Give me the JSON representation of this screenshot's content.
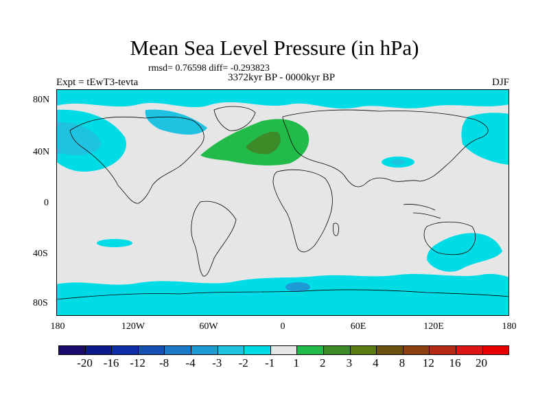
{
  "title": "Mean Sea Level Pressure (in hPa)",
  "stats": "rmsd= 0.76598 diff= -0.293823",
  "subtitle": "3372kyr BP - 0000kyr BP",
  "expt": "Expt = tEwT3-tevta",
  "season": "DJF",
  "lat_labels": [
    "80N",
    "40N",
    "0",
    "40S",
    "80S"
  ],
  "lon_labels": [
    "180",
    "120W",
    "60W",
    "0",
    "60E",
    "120E",
    "180"
  ],
  "colorbar_labels": [
    "-20",
    "-16",
    "-12",
    "-8",
    "-4",
    "-3",
    "-2",
    "-1",
    "1",
    "2",
    "3",
    "4",
    "8",
    "12",
    "16",
    "20"
  ],
  "colorbar_colors": [
    "#1a0a6b",
    "#0a1a8c",
    "#0d2ea6",
    "#1450b4",
    "#1e78c8",
    "#1e9bd7",
    "#1ec3e1",
    "#00dce6",
    "#e6e6e6",
    "#22bb4a",
    "#3d8a28",
    "#5a7a14",
    "#6b5010",
    "#8c4010",
    "#b42814",
    "#dc1414",
    "#e60000"
  ],
  "colors": {
    "background": "#e6e6e6",
    "cyan": "#00dce6",
    "light_blue": "#1ec3e1",
    "mid_blue": "#1e9bd7",
    "deep_blue": "#1e78c8",
    "green": "#22bb4a",
    "dark_green": "#3d8a28"
  }
}
